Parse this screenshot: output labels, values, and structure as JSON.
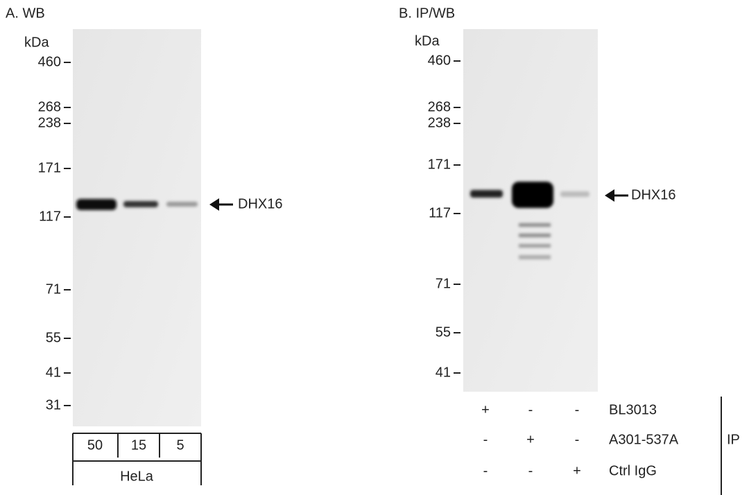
{
  "panels": [
    {
      "label": "A. WB",
      "unit": "kDa",
      "markers": [
        "460",
        "268",
        "238",
        "171",
        "117",
        "71",
        "55",
        "41",
        "31"
      ],
      "target": "DHX16",
      "lanes": [
        "50",
        "15",
        "5"
      ],
      "sample": "HeLa"
    },
    {
      "label": "B. IP/WB",
      "unit": "kDa",
      "markers": [
        "460",
        "268",
        "238",
        "171",
        "117",
        "71",
        "55",
        "41"
      ],
      "target": "DHX16",
      "rows": [
        {
          "label": "BL3013",
          "marks": [
            "+",
            "-",
            "-"
          ]
        },
        {
          "label": "A301-537A",
          "marks": [
            "-",
            "+",
            "-"
          ]
        },
        {
          "label": "Ctrl IgG",
          "marks": [
            "-",
            "-",
            "+"
          ]
        }
      ],
      "group": "IP"
    }
  ]
}
